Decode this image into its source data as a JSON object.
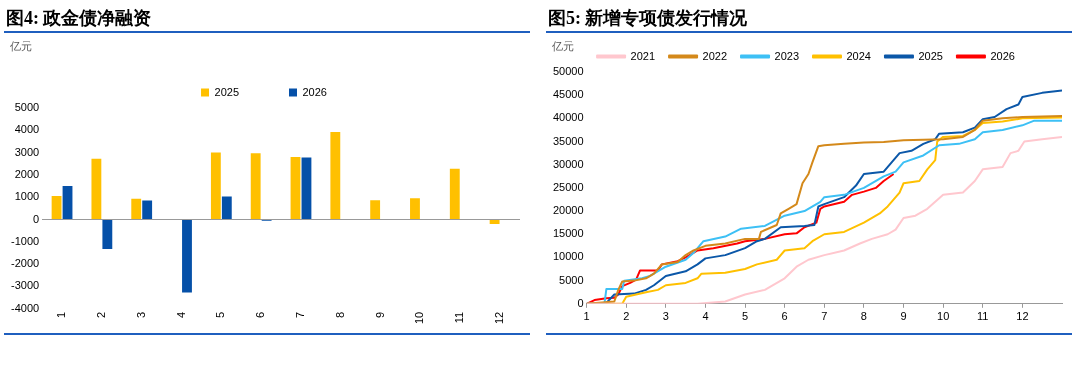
{
  "chart_data": [
    {
      "type": "bar",
      "title": "图4: 政金债净融资",
      "ylabel": "亿元",
      "categories": [
        "1",
        "2",
        "3",
        "4",
        "5",
        "6",
        "7",
        "8",
        "9",
        "10",
        "11",
        "12"
      ],
      "ylim": [
        -4000,
        5000
      ],
      "yticks": [
        -4000,
        -3000,
        -2000,
        -1000,
        0,
        1000,
        2000,
        3000,
        4000,
        5000
      ],
      "legend": "top",
      "series": [
        {
          "name": "2025",
          "color": "#ffc000",
          "values": [
            1050,
            2730,
            930,
            null,
            3000,
            2970,
            2800,
            3920,
            870,
            950,
            2280,
            -200
          ]
        },
        {
          "name": "2026",
          "color": "#0550a8",
          "values": [
            1500,
            -1320,
            850,
            -3270,
            1030,
            -50,
            2780,
            null,
            null,
            null,
            null,
            null
          ]
        }
      ]
    },
    {
      "type": "line",
      "title": "图5: 新增专项债发行情况",
      "ylabel": "亿元",
      "xlim": [
        1,
        13
      ],
      "xticks": [
        1,
        2,
        3,
        4,
        5,
        6,
        7,
        8,
        9,
        10,
        11,
        12
      ],
      "ylim": [
        0,
        50000
      ],
      "yticks": [
        0,
        5000,
        10000,
        15000,
        20000,
        25000,
        30000,
        35000,
        40000,
        45000,
        50000
      ],
      "legend": "top",
      "series": [
        {
          "name": "2021",
          "color": "#ffc7ce",
          "x": [
            1,
            3.8,
            4.5,
            5,
            5.5,
            6,
            6.3,
            6.6,
            7,
            7.5,
            7.9,
            8.2,
            8.6,
            8.8,
            9,
            9.3,
            9.6,
            9.8,
            10,
            10.5,
            10.8,
            11,
            11.5,
            11.7,
            11.9,
            12.05,
            12.5,
            13
          ],
          "values": [
            0,
            0,
            500,
            2000,
            3000,
            5500,
            8000,
            9500,
            10500,
            11500,
            13000,
            14000,
            15000,
            16000,
            18500,
            19000,
            20500,
            22000,
            23500,
            24000,
            26500,
            29000,
            29500,
            32500,
            33000,
            35000,
            35500,
            36000
          ]
        },
        {
          "name": "2022",
          "color": "#d4891a",
          "x": [
            1,
            1.7,
            1.8,
            1.9,
            2.2,
            2.5,
            2.7,
            2.9,
            3.3,
            3.5,
            3.7,
            4,
            4.5,
            5,
            5.35,
            5.4,
            5.8,
            5.9,
            6.1,
            6.3,
            6.45,
            6.6,
            6.7,
            6.85,
            7,
            7.5,
            8,
            8.5,
            9,
            10,
            10.5,
            10.8,
            11,
            11.5,
            12,
            13
          ],
          "values": [
            0,
            500,
            3000,
            4800,
            5000,
            5500,
            6500,
            8500,
            9000,
            10500,
            11500,
            12500,
            13000,
            14000,
            14000,
            15500,
            17000,
            19500,
            20500,
            21500,
            26000,
            28000,
            30500,
            34000,
            34200,
            34500,
            34800,
            34900,
            35300,
            35500,
            36000,
            37500,
            39500,
            40000,
            40300,
            40500
          ]
        },
        {
          "name": "2023",
          "color": "#3dc0f5",
          "x": [
            1,
            1.45,
            1.5,
            1.9,
            1.95,
            2.4,
            2.6,
            3,
            3.5,
            3.7,
            3.95,
            4.5,
            4.9,
            5.5,
            6,
            6.5,
            6.9,
            7,
            7.5,
            8,
            8.5,
            8.8,
            9,
            9.5,
            9.9,
            10.4,
            10.8,
            11,
            11.5,
            12,
            12.3,
            13
          ],
          "values": [
            0,
            0,
            3200,
            3200,
            5000,
            5500,
            6000,
            8000,
            9500,
            11000,
            13500,
            14500,
            16200,
            16800,
            19000,
            20000,
            22000,
            23000,
            23500,
            25000,
            27500,
            28500,
            30500,
            32000,
            34200,
            34500,
            35500,
            37000,
            37500,
            38500,
            39500,
            39500
          ]
        },
        {
          "name": "2024",
          "color": "#ffc000",
          "x": [
            1,
            1.9,
            2,
            2.5,
            2.8,
            3,
            3.5,
            3.8,
            3.9,
            4.5,
            5,
            5.3,
            5.8,
            6,
            6.5,
            6.7,
            7,
            7.5,
            8,
            8.4,
            8.6,
            8.9,
            9,
            9.4,
            9.6,
            9.8,
            9.85,
            10,
            10.5,
            10.8,
            11,
            11.5,
            12,
            13
          ],
          "values": [
            0,
            0,
            1500,
            2500,
            3000,
            4000,
            4500,
            5500,
            6500,
            6700,
            7500,
            8500,
            9500,
            11500,
            12000,
            13500,
            15000,
            15500,
            17500,
            19500,
            21000,
            24000,
            26000,
            26500,
            29000,
            31000,
            35000,
            36000,
            36200,
            37500,
            39000,
            39300,
            40000,
            40200
          ]
        },
        {
          "name": "2025",
          "color": "#0b57a8",
          "x": [
            1,
            1.5,
            1.7,
            2.2,
            2.5,
            2.7,
            3,
            3.5,
            3.8,
            4,
            4.5,
            5,
            5.3,
            5.5,
            5.9,
            6.5,
            6.75,
            6.85,
            7,
            7.5,
            7.8,
            8,
            8.5,
            8.7,
            8.9,
            9.2,
            9.5,
            9.8,
            9.9,
            10.5,
            10.8,
            11,
            11.3,
            11.6,
            11.9,
            12,
            12.5,
            13
          ],
          "values": [
            0,
            200,
            2000,
            2200,
            3000,
            4000,
            6000,
            7000,
            8500,
            9800,
            10500,
            12000,
            13500,
            14000,
            16500,
            16800,
            17000,
            21000,
            21500,
            23000,
            25500,
            28000,
            28500,
            30500,
            32500,
            33000,
            34500,
            35500,
            36700,
            37000,
            38000,
            39800,
            40300,
            42000,
            43000,
            44600,
            45500,
            46000
          ]
        },
        {
          "name": "2026",
          "color": "#ff0000",
          "x": [
            1,
            1.2,
            1.5,
            1.7,
            1.8,
            1.9,
            2.1,
            2.25,
            2.35,
            2.8,
            2.9,
            3.3,
            3.5,
            3.8,
            4.2,
            4.8,
            5,
            5.5,
            6,
            6.3,
            6.5,
            6.8,
            6.9,
            7,
            7.5,
            7.7,
            8,
            8.3,
            8.5,
            8.75
          ],
          "values": [
            0,
            800,
            1200,
            1300,
            2000,
            3800,
            4500,
            5200,
            7200,
            7200,
            8500,
            9200,
            10000,
            11500,
            12000,
            13000,
            13500,
            14000,
            15000,
            15200,
            16500,
            17500,
            20500,
            21000,
            22000,
            23500,
            24200,
            25000,
            26500,
            28000
          ]
        }
      ]
    }
  ]
}
